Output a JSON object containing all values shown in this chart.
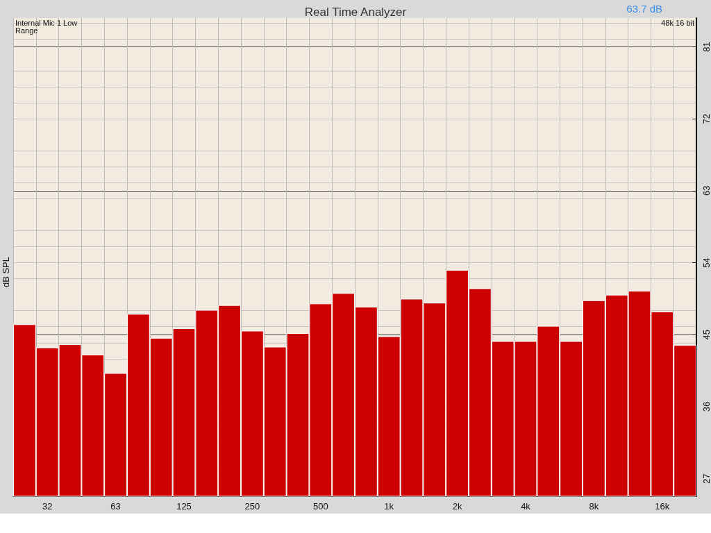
{
  "chart_data": {
    "type": "bar",
    "title": "Real Time Analyzer",
    "ylabel": "dB SPL",
    "annotations": [
      "Internal Mic 1 Low Range",
      "48k 16 bit",
      "63.7 dB"
    ],
    "categories": [
      null,
      "32",
      null,
      null,
      "63",
      null,
      null,
      "125",
      null,
      null,
      "250",
      null,
      null,
      "500",
      null,
      null,
      "1k",
      null,
      null,
      "2k",
      null,
      null,
      "4k",
      null,
      null,
      "8k",
      null,
      null,
      "16k",
      null
    ],
    "values": [
      46.3,
      43.4,
      43.8,
      42.5,
      40.2,
      47.6,
      44.6,
      45.8,
      48.1,
      48.7,
      45.5,
      43.5,
      45.2,
      48.9,
      50.2,
      48.5,
      44.8,
      49.5,
      49.0,
      53.1,
      50.8,
      44.2,
      44.2,
      46.1,
      44.2,
      49.3,
      50.0,
      50.5,
      47.9,
      43.7
    ],
    "color": "#cc0000",
    "ylim": [
      24.8,
      84.6
    ],
    "yticks": [
      27,
      36,
      45,
      54,
      63,
      72,
      81
    ],
    "grid": true
  }
}
